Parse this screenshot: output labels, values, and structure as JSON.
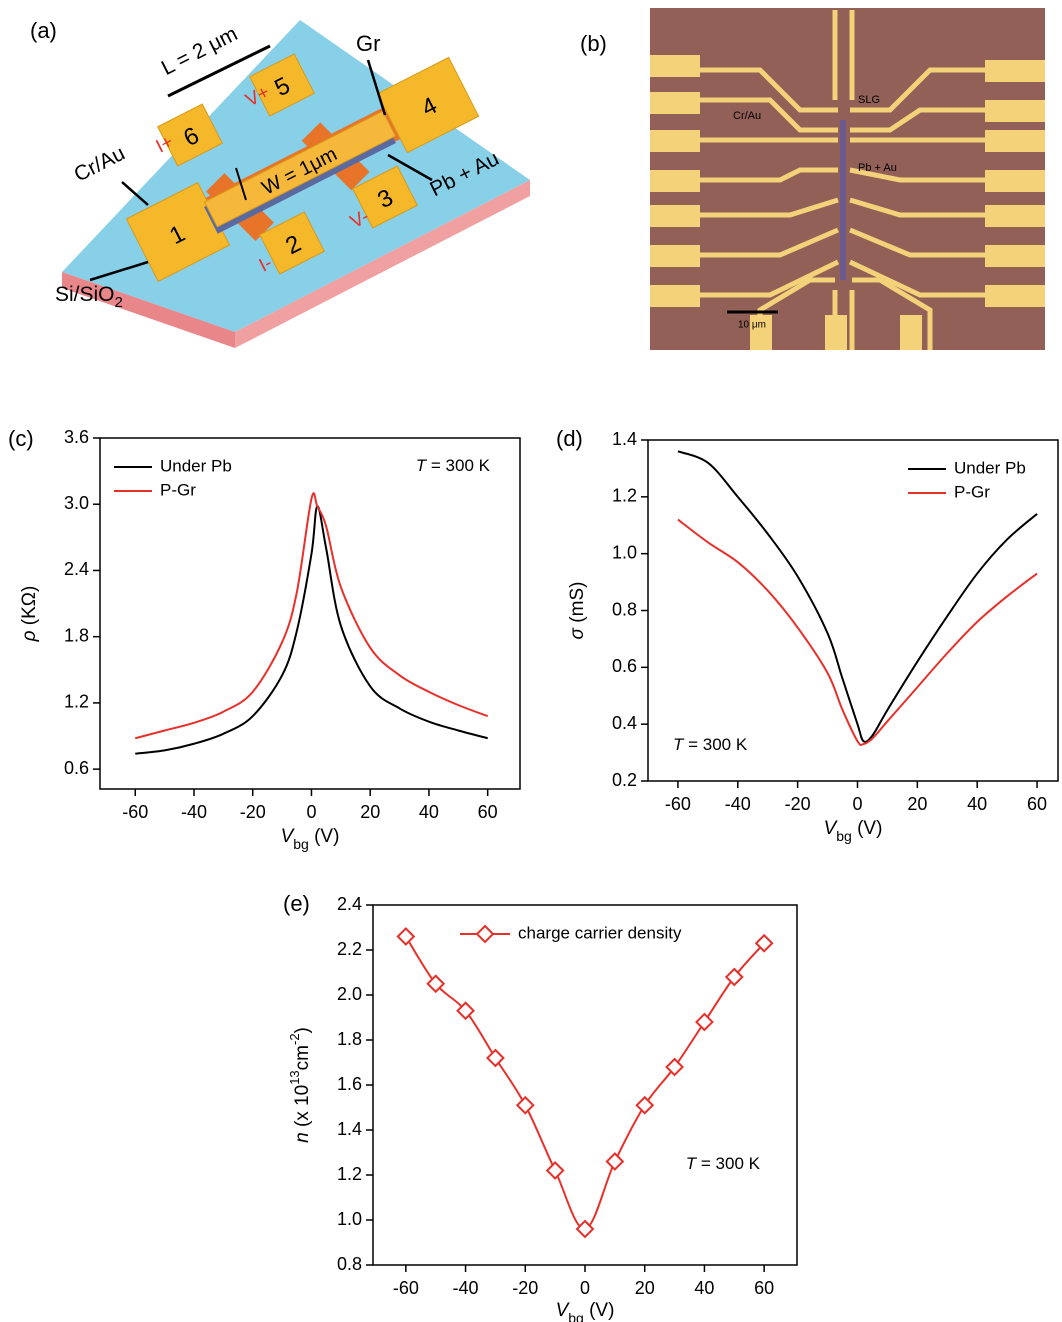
{
  "panel_a": {
    "label": "(a)",
    "length_label": "L = 2 μm",
    "graphene_label": "Gr",
    "electrode_label": "Cr/Au",
    "width_label": "W = 1μm",
    "lead_label": "Pb + Au",
    "substrate_label": {
      "text": "Si/SiO",
      "sub": "2"
    },
    "pads": [
      "1",
      "2",
      "3",
      "4",
      "5",
      "6"
    ],
    "terminals": [
      "I+",
      "V+",
      "I-",
      "V-"
    ]
  },
  "panel_b": {
    "label": "(b)",
    "labels": [
      "Cr/Au",
      "SLG",
      "Pb + Au"
    ],
    "scale_bar": "10 μm"
  },
  "chart_data": [
    {
      "type": "line",
      "panel_label": "(c)",
      "x_label": [
        {
          "text": "V",
          "kind": "italic"
        },
        {
          "text": "bg",
          "kind": "sub"
        },
        {
          "text": " (V)",
          "kind": "normal"
        }
      ],
      "y_label": [
        {
          "text": "ρ",
          "kind": "italic"
        },
        {
          "text": " (KΩ)",
          "kind": "normal"
        }
      ],
      "annotation": [
        {
          "text": "T",
          "kind": "italic"
        },
        {
          "text": " = 300 K",
          "kind": "normal"
        }
      ],
      "legend": "upper left",
      "xlim": [
        -72,
        71
      ],
      "xticks": [
        -60,
        -40,
        -20,
        0,
        20,
        40,
        60
      ],
      "ylim": [
        0.42,
        3.6
      ],
      "yticks": [
        0.6,
        1.2,
        1.8,
        2.4,
        {
          "value": 3,
          "label": "3.0"
        },
        3.6
      ],
      "x": [
        -60,
        -50,
        -40,
        -30,
        -20,
        -10,
        -5,
        0,
        2,
        5,
        10,
        20,
        30,
        40,
        50,
        60
      ],
      "series": [
        {
          "name": "Under Pb",
          "color": "#000000",
          "values": [
            0.74,
            0.77,
            0.83,
            0.92,
            1.08,
            1.45,
            1.85,
            2.55,
            2.98,
            2.6,
            1.9,
            1.35,
            1.15,
            1.03,
            0.95,
            0.88
          ]
        },
        {
          "name": "P-Gr",
          "color": "#e8302a",
          "values": [
            0.88,
            0.95,
            1.02,
            1.12,
            1.3,
            1.75,
            2.2,
            3.05,
            2.98,
            2.8,
            2.25,
            1.7,
            1.45,
            1.3,
            1.18,
            1.08
          ]
        }
      ]
    },
    {
      "type": "line",
      "panel_label": "(d)",
      "x_label": [
        {
          "text": "V",
          "kind": "italic"
        },
        {
          "text": "bg",
          "kind": "sub"
        },
        {
          "text": " (V)",
          "kind": "normal"
        }
      ],
      "y_label": [
        {
          "text": "σ",
          "kind": "italic"
        },
        {
          "text": " (mS)",
          "kind": "normal"
        }
      ],
      "annotation": [
        {
          "text": "T",
          "kind": "italic"
        },
        {
          "text": " = 300 K",
          "kind": "normal"
        }
      ],
      "legend": "upper right",
      "xlim": [
        -70,
        67
      ],
      "xticks": [
        -60,
        -40,
        -20,
        0,
        20,
        40,
        60
      ],
      "ylim": [
        0.2,
        1.4
      ],
      "yticks": [
        0.2,
        0.4,
        0.6,
        0.8,
        {
          "value": 1,
          "label": "1.0"
        },
        1.2,
        1.4
      ],
      "x": [
        -60,
        -50,
        -40,
        -30,
        -20,
        -10,
        -5,
        0,
        2,
        5,
        10,
        20,
        30,
        40,
        50,
        60
      ],
      "series": [
        {
          "name": "Under Pb",
          "color": "#000000",
          "values": [
            1.36,
            1.32,
            1.2,
            1.07,
            0.92,
            0.72,
            0.56,
            0.4,
            0.34,
            0.36,
            0.45,
            0.62,
            0.78,
            0.93,
            1.05,
            1.14
          ]
        },
        {
          "name": "P-Gr",
          "color": "#e8302a",
          "values": [
            1.12,
            1.04,
            0.97,
            0.87,
            0.74,
            0.58,
            0.45,
            0.34,
            0.33,
            0.35,
            0.41,
            0.53,
            0.65,
            0.76,
            0.85,
            0.93
          ]
        }
      ]
    },
    {
      "type": "line",
      "panel_label": "(e)",
      "x_label": [
        {
          "text": "V",
          "kind": "italic"
        },
        {
          "text": "bg",
          "kind": "sub"
        },
        {
          "text": " (V)",
          "kind": "normal"
        }
      ],
      "y_label": [
        {
          "text": "n",
          "kind": "italic"
        },
        {
          "text": " (x 10",
          "kind": "normal"
        },
        {
          "text": "13",
          "kind": "sup"
        },
        {
          "text": "cm",
          "kind": "normal"
        },
        {
          "text": "-2",
          "kind": "sup"
        },
        {
          "text": ")",
          "kind": "normal"
        }
      ],
      "annotation": [
        {
          "text": "T",
          "kind": "italic"
        },
        {
          "text": " = 300 K",
          "kind": "normal"
        }
      ],
      "legend": "upper center",
      "xlim": [
        -71,
        71
      ],
      "xticks": [
        -60,
        -40,
        -20,
        0,
        20,
        40,
        60
      ],
      "ylim": [
        0.8,
        2.4
      ],
      "yticks": [
        0.8,
        {
          "value": 1,
          "label": "1.0"
        },
        1.2,
        1.4,
        1.6,
        1.8,
        {
          "value": 2,
          "label": "2.0"
        },
        2.2,
        2.4
      ],
      "x": [
        -60,
        -50,
        -40,
        -30,
        -20,
        -10,
        0,
        10,
        20,
        30,
        40,
        50,
        60
      ],
      "series": [
        {
          "name": "charge carrier density",
          "color": "#e8302a",
          "marker": "diamond",
          "values": [
            2.26,
            2.05,
            1.93,
            1.72,
            1.51,
            1.22,
            0.96,
            1.26,
            1.51,
            1.68,
            1.88,
            2.08,
            2.23
          ]
        }
      ]
    }
  ]
}
